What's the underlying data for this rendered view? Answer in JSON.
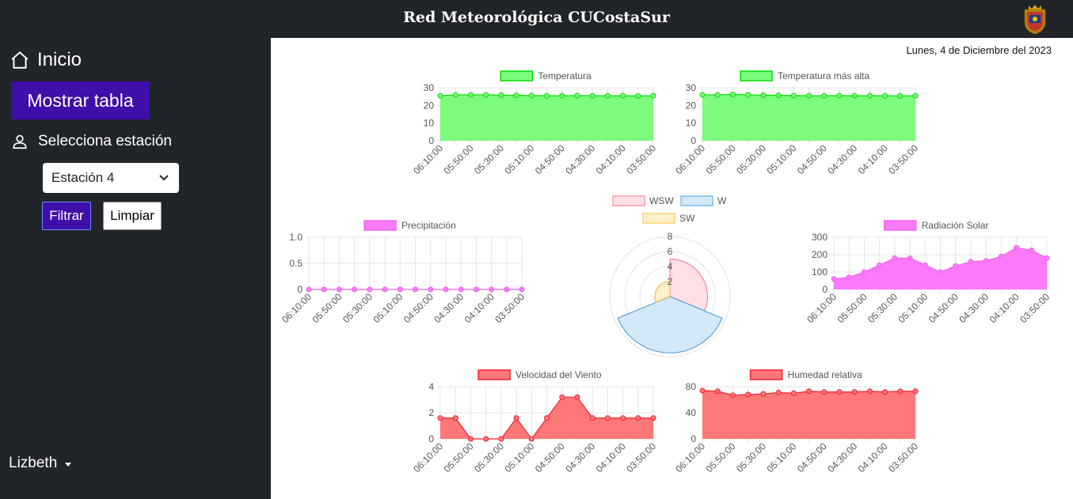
{
  "header": {
    "title": "Red Meteorológica CUCostaSur"
  },
  "sidebar": {
    "home_label": "Inicio",
    "show_table_label": "Mostrar tabla",
    "station_label": "Selecciona estación",
    "station_value": "Estación 4",
    "filter_label": "Filtrar",
    "clear_label": "Limpiar",
    "user_name": "Lizbeth"
  },
  "date_text": "Lunes, 4 de Diciembre del 2023",
  "colors": {
    "sidebar": "#212529",
    "accent": "#3e0fa9"
  },
  "chart_data": [
    {
      "id": "temperatura",
      "type": "area",
      "legend": "Temperatura",
      "color": "#00dd00",
      "fill": "#7dfb7d",
      "x": [
        "06:10:00",
        "06:00:00",
        "05:50:00",
        "05:40:00",
        "05:30:00",
        "05:20:00",
        "05:10:00",
        "05:00:00",
        "04:50:00",
        "04:40:00",
        "04:30:00",
        "04:20:00",
        "04:10:00",
        "04:00:00",
        "03:50:00"
      ],
      "x_tick_labels": [
        "06:10:00",
        "05:50:00",
        "05:30:00",
        "05:10:00",
        "04:50:00",
        "04:30:00",
        "04:10:00",
        "03:50:00"
      ],
      "values": [
        25.5,
        26,
        26,
        26,
        25.8,
        25.7,
        25.6,
        25.5,
        25.5,
        25.6,
        25.5,
        25.5,
        25.5,
        25.4,
        25.5
      ],
      "ylim": [
        0,
        30
      ],
      "yticks": [
        0,
        10,
        20,
        30
      ]
    },
    {
      "id": "temp-mas-alta",
      "type": "area",
      "legend": "Temperatura más alta",
      "color": "#00dd00",
      "fill": "#7dfb7d",
      "x": [
        "06:10:00",
        "06:00:00",
        "05:50:00",
        "05:40:00",
        "05:30:00",
        "05:20:00",
        "05:10:00",
        "05:00:00",
        "04:50:00",
        "04:40:00",
        "04:30:00",
        "04:20:00",
        "04:10:00",
        "04:00:00",
        "03:50:00"
      ],
      "x_tick_labels": [
        "06:10:00",
        "05:50:00",
        "05:30:00",
        "05:10:00",
        "04:50:00",
        "04:30:00",
        "04:10:00",
        "03:50:00"
      ],
      "values": [
        26,
        26,
        26.2,
        26,
        25.8,
        25.7,
        25.6,
        25.5,
        25.5,
        25.6,
        25.5,
        25.5,
        25.5,
        25.4,
        25.5
      ],
      "ylim": [
        0,
        30
      ],
      "yticks": [
        0,
        10,
        20,
        30
      ]
    },
    {
      "id": "precipitacion",
      "type": "area",
      "legend": "Precipitación",
      "color": "#ee66ee",
      "fill": "#fa7afa",
      "x": [
        "06:10:00",
        "06:00:00",
        "05:50:00",
        "05:40:00",
        "05:30:00",
        "05:20:00",
        "05:10:00",
        "05:00:00",
        "04:50:00",
        "04:40:00",
        "04:30:00",
        "04:20:00",
        "04:10:00",
        "04:00:00",
        "03:50:00"
      ],
      "x_tick_labels": [
        "06:10:00",
        "05:50:00",
        "05:30:00",
        "05:10:00",
        "04:50:00",
        "04:30:00",
        "04:10:00",
        "03:50:00"
      ],
      "values": [
        0,
        0,
        0,
        0,
        0,
        0,
        0,
        0,
        0,
        0,
        0,
        0,
        0,
        0,
        0
      ],
      "ylim": [
        0,
        1
      ],
      "yticks": [
        0,
        0.5,
        1
      ],
      "ytick_labels": [
        "0",
        "0.5",
        "1.0"
      ]
    },
    {
      "id": "viento-direccion",
      "type": "polarArea",
      "legend": [
        "WSW",
        "W",
        "SW"
      ],
      "legend_colors": [
        "#ff9aae",
        "#7fbde8",
        "#ffd173"
      ],
      "rlim": [
        0,
        8
      ],
      "rticks": [
        2,
        4,
        6,
        8
      ],
      "sectors": [
        {
          "name": "WSW",
          "value": 5,
          "start_deg": 0,
          "end_deg": 112.5,
          "color": "#ff6a8a",
          "fill": "#ffe0e6"
        },
        {
          "name": "W",
          "value": 7.5,
          "start_deg": 112.5,
          "end_deg": 247.5,
          "color": "#3f96d8",
          "fill": "#d3e8f8"
        },
        {
          "name": "SW",
          "value": 2,
          "start_deg": 247.5,
          "end_deg": 360,
          "color": "#f0b030",
          "fill": "#fff0cc"
        }
      ]
    },
    {
      "id": "radiacion",
      "type": "area",
      "legend": "Radiación Solar",
      "color": "#ee66ee",
      "fill": "#fa7afa",
      "x": [
        "06:10:00",
        "06:00:00",
        "05:50:00",
        "05:40:00",
        "05:30:00",
        "05:20:00",
        "05:10:00",
        "05:00:00",
        "04:50:00",
        "04:40:00",
        "04:30:00",
        "04:20:00",
        "04:10:00",
        "04:00:00",
        "03:50:00"
      ],
      "x_tick_labels": [
        "06:10:00",
        "05:50:00",
        "05:30:00",
        "05:10:00",
        "04:50:00",
        "04:30:00",
        "04:10:00",
        "03:50:00"
      ],
      "values": [
        60,
        70,
        100,
        140,
        180,
        180,
        140,
        100,
        135,
        160,
        165,
        190,
        240,
        225,
        180
      ],
      "ylim": [
        0,
        300
      ],
      "yticks": [
        0,
        100,
        200,
        300
      ]
    },
    {
      "id": "velocidad-viento",
      "type": "area",
      "legend": "Velocidad del Viento",
      "color": "#ee2233",
      "fill": "#ff7878",
      "x": [
        "06:10:00",
        "06:00:00",
        "05:50:00",
        "05:40:00",
        "05:30:00",
        "05:20:00",
        "05:10:00",
        "05:00:00",
        "04:50:00",
        "04:40:00",
        "04:30:00",
        "04:20:00",
        "04:10:00",
        "04:00:00",
        "03:50:00"
      ],
      "x_tick_labels": [
        "06:10:00",
        "05:50:00",
        "05:30:00",
        "05:10:00",
        "04:50:00",
        "04:30:00",
        "04:10:00",
        "03:50:00"
      ],
      "values": [
        1.6,
        1.6,
        0,
        0,
        0,
        1.6,
        0,
        1.6,
        3.2,
        3.2,
        1.6,
        1.6,
        1.6,
        1.6,
        1.6
      ],
      "ylim": [
        0,
        4
      ],
      "yticks": [
        0,
        2,
        4
      ]
    },
    {
      "id": "humedad",
      "type": "area",
      "legend": "Humedad relativa",
      "color": "#ee2233",
      "fill": "#ff7878",
      "x": [
        "06:10:00",
        "06:00:00",
        "05:50:00",
        "05:40:00",
        "05:30:00",
        "05:20:00",
        "05:10:00",
        "05:00:00",
        "04:50:00",
        "04:40:00",
        "04:30:00",
        "04:20:00",
        "04:10:00",
        "04:00:00",
        "03:50:00"
      ],
      "x_tick_labels": [
        "06:10:00",
        "05:50:00",
        "05:30:00",
        "05:10:00",
        "04:50:00",
        "04:30:00",
        "04:10:00",
        "03:50:00"
      ],
      "values": [
        74,
        73,
        67,
        68,
        69,
        71,
        70,
        73,
        72,
        72,
        72,
        73,
        72,
        73,
        73
      ],
      "ylim": [
        0,
        80
      ],
      "yticks": [
        0,
        40,
        80
      ]
    }
  ]
}
